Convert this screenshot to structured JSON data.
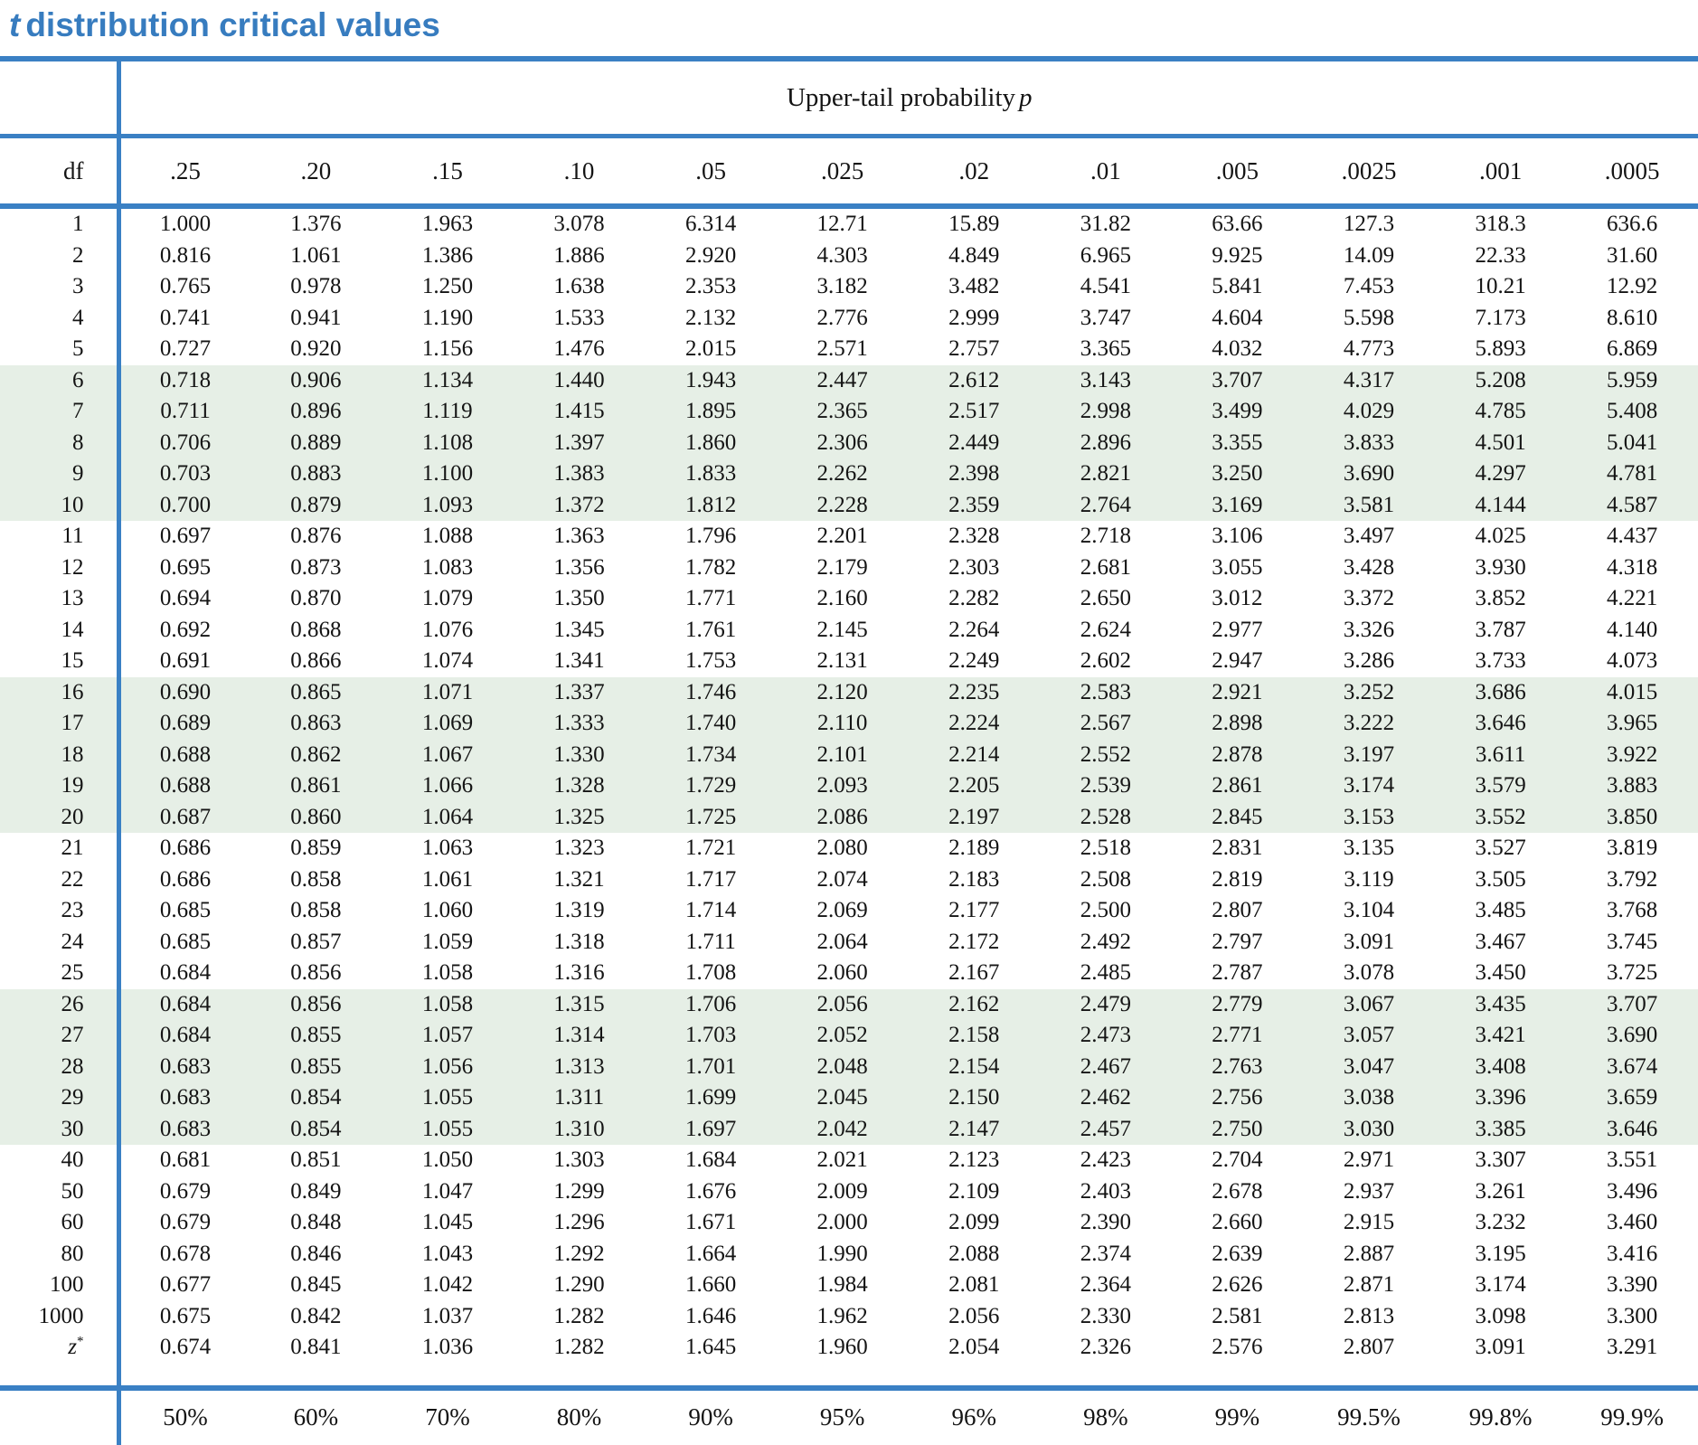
{
  "colors": {
    "title_blue": "#377CBF",
    "rule_blue": "#3A80C4",
    "band_green": "#E6EFE6",
    "text": "#141414"
  },
  "title": {
    "t": "t",
    "rest": "distribution critical values"
  },
  "table": {
    "upper_tail_label": "Upper-tail probability",
    "upper_tail_p": "p",
    "df_header": "df",
    "p_values": [
      ".25",
      ".20",
      ".15",
      ".10",
      ".05",
      ".025",
      ".02",
      ".01",
      ".005",
      ".0025",
      ".001",
      ".0005"
    ],
    "shaded_dfs": [
      "6",
      "7",
      "8",
      "9",
      "10",
      "16",
      "17",
      "18",
      "19",
      "20",
      "26",
      "27",
      "28",
      "29",
      "30"
    ],
    "rows": [
      {
        "df": "1",
        "v": [
          "1.000",
          "1.376",
          "1.963",
          "3.078",
          "6.314",
          "12.71",
          "15.89",
          "31.82",
          "63.66",
          "127.3",
          "318.3",
          "636.6"
        ]
      },
      {
        "df": "2",
        "v": [
          "0.816",
          "1.061",
          "1.386",
          "1.886",
          "2.920",
          "4.303",
          "4.849",
          "6.965",
          "9.925",
          "14.09",
          "22.33",
          "31.60"
        ]
      },
      {
        "df": "3",
        "v": [
          "0.765",
          "0.978",
          "1.250",
          "1.638",
          "2.353",
          "3.182",
          "3.482",
          "4.541",
          "5.841",
          "7.453",
          "10.21",
          "12.92"
        ]
      },
      {
        "df": "4",
        "v": [
          "0.741",
          "0.941",
          "1.190",
          "1.533",
          "2.132",
          "2.776",
          "2.999",
          "3.747",
          "4.604",
          "5.598",
          "7.173",
          "8.610"
        ]
      },
      {
        "df": "5",
        "v": [
          "0.727",
          "0.920",
          "1.156",
          "1.476",
          "2.015",
          "2.571",
          "2.757",
          "3.365",
          "4.032",
          "4.773",
          "5.893",
          "6.869"
        ]
      },
      {
        "df": "6",
        "v": [
          "0.718",
          "0.906",
          "1.134",
          "1.440",
          "1.943",
          "2.447",
          "2.612",
          "3.143",
          "3.707",
          "4.317",
          "5.208",
          "5.959"
        ]
      },
      {
        "df": "7",
        "v": [
          "0.711",
          "0.896",
          "1.119",
          "1.415",
          "1.895",
          "2.365",
          "2.517",
          "2.998",
          "3.499",
          "4.029",
          "4.785",
          "5.408"
        ]
      },
      {
        "df": "8",
        "v": [
          "0.706",
          "0.889",
          "1.108",
          "1.397",
          "1.860",
          "2.306",
          "2.449",
          "2.896",
          "3.355",
          "3.833",
          "4.501",
          "5.041"
        ]
      },
      {
        "df": "9",
        "v": [
          "0.703",
          "0.883",
          "1.100",
          "1.383",
          "1.833",
          "2.262",
          "2.398",
          "2.821",
          "3.250",
          "3.690",
          "4.297",
          "4.781"
        ]
      },
      {
        "df": "10",
        "v": [
          "0.700",
          "0.879",
          "1.093",
          "1.372",
          "1.812",
          "2.228",
          "2.359",
          "2.764",
          "3.169",
          "3.581",
          "4.144",
          "4.587"
        ]
      },
      {
        "df": "11",
        "v": [
          "0.697",
          "0.876",
          "1.088",
          "1.363",
          "1.796",
          "2.201",
          "2.328",
          "2.718",
          "3.106",
          "3.497",
          "4.025",
          "4.437"
        ]
      },
      {
        "df": "12",
        "v": [
          "0.695",
          "0.873",
          "1.083",
          "1.356",
          "1.782",
          "2.179",
          "2.303",
          "2.681",
          "3.055",
          "3.428",
          "3.930",
          "4.318"
        ]
      },
      {
        "df": "13",
        "v": [
          "0.694",
          "0.870",
          "1.079",
          "1.350",
          "1.771",
          "2.160",
          "2.282",
          "2.650",
          "3.012",
          "3.372",
          "3.852",
          "4.221"
        ]
      },
      {
        "df": "14",
        "v": [
          "0.692",
          "0.868",
          "1.076",
          "1.345",
          "1.761",
          "2.145",
          "2.264",
          "2.624",
          "2.977",
          "3.326",
          "3.787",
          "4.140"
        ]
      },
      {
        "df": "15",
        "v": [
          "0.691",
          "0.866",
          "1.074",
          "1.341",
          "1.753",
          "2.131",
          "2.249",
          "2.602",
          "2.947",
          "3.286",
          "3.733",
          "4.073"
        ]
      },
      {
        "df": "16",
        "v": [
          "0.690",
          "0.865",
          "1.071",
          "1.337",
          "1.746",
          "2.120",
          "2.235",
          "2.583",
          "2.921",
          "3.252",
          "3.686",
          "4.015"
        ]
      },
      {
        "df": "17",
        "v": [
          "0.689",
          "0.863",
          "1.069",
          "1.333",
          "1.740",
          "2.110",
          "2.224",
          "2.567",
          "2.898",
          "3.222",
          "3.646",
          "3.965"
        ]
      },
      {
        "df": "18",
        "v": [
          "0.688",
          "0.862",
          "1.067",
          "1.330",
          "1.734",
          "2.101",
          "2.214",
          "2.552",
          "2.878",
          "3.197",
          "3.611",
          "3.922"
        ]
      },
      {
        "df": "19",
        "v": [
          "0.688",
          "0.861",
          "1.066",
          "1.328",
          "1.729",
          "2.093",
          "2.205",
          "2.539",
          "2.861",
          "3.174",
          "3.579",
          "3.883"
        ]
      },
      {
        "df": "20",
        "v": [
          "0.687",
          "0.860",
          "1.064",
          "1.325",
          "1.725",
          "2.086",
          "2.197",
          "2.528",
          "2.845",
          "3.153",
          "3.552",
          "3.850"
        ]
      },
      {
        "df": "21",
        "v": [
          "0.686",
          "0.859",
          "1.063",
          "1.323",
          "1.721",
          "2.080",
          "2.189",
          "2.518",
          "2.831",
          "3.135",
          "3.527",
          "3.819"
        ]
      },
      {
        "df": "22",
        "v": [
          "0.686",
          "0.858",
          "1.061",
          "1.321",
          "1.717",
          "2.074",
          "2.183",
          "2.508",
          "2.819",
          "3.119",
          "3.505",
          "3.792"
        ]
      },
      {
        "df": "23",
        "v": [
          "0.685",
          "0.858",
          "1.060",
          "1.319",
          "1.714",
          "2.069",
          "2.177",
          "2.500",
          "2.807",
          "3.104",
          "3.485",
          "3.768"
        ]
      },
      {
        "df": "24",
        "v": [
          "0.685",
          "0.857",
          "1.059",
          "1.318",
          "1.711",
          "2.064",
          "2.172",
          "2.492",
          "2.797",
          "3.091",
          "3.467",
          "3.745"
        ]
      },
      {
        "df": "25",
        "v": [
          "0.684",
          "0.856",
          "1.058",
          "1.316",
          "1.708",
          "2.060",
          "2.167",
          "2.485",
          "2.787",
          "3.078",
          "3.450",
          "3.725"
        ]
      },
      {
        "df": "26",
        "v": [
          "0.684",
          "0.856",
          "1.058",
          "1.315",
          "1.706",
          "2.056",
          "2.162",
          "2.479",
          "2.779",
          "3.067",
          "3.435",
          "3.707"
        ]
      },
      {
        "df": "27",
        "v": [
          "0.684",
          "0.855",
          "1.057",
          "1.314",
          "1.703",
          "2.052",
          "2.158",
          "2.473",
          "2.771",
          "3.057",
          "3.421",
          "3.690"
        ]
      },
      {
        "df": "28",
        "v": [
          "0.683",
          "0.855",
          "1.056",
          "1.313",
          "1.701",
          "2.048",
          "2.154",
          "2.467",
          "2.763",
          "3.047",
          "3.408",
          "3.674"
        ]
      },
      {
        "df": "29",
        "v": [
          "0.683",
          "0.854",
          "1.055",
          "1.311",
          "1.699",
          "2.045",
          "2.150",
          "2.462",
          "2.756",
          "3.038",
          "3.396",
          "3.659"
        ]
      },
      {
        "df": "30",
        "v": [
          "0.683",
          "0.854",
          "1.055",
          "1.310",
          "1.697",
          "2.042",
          "2.147",
          "2.457",
          "2.750",
          "3.030",
          "3.385",
          "3.646"
        ]
      },
      {
        "df": "40",
        "v": [
          "0.681",
          "0.851",
          "1.050",
          "1.303",
          "1.684",
          "2.021",
          "2.123",
          "2.423",
          "2.704",
          "2.971",
          "3.307",
          "3.551"
        ]
      },
      {
        "df": "50",
        "v": [
          "0.679",
          "0.849",
          "1.047",
          "1.299",
          "1.676",
          "2.009",
          "2.109",
          "2.403",
          "2.678",
          "2.937",
          "3.261",
          "3.496"
        ]
      },
      {
        "df": "60",
        "v": [
          "0.679",
          "0.848",
          "1.045",
          "1.296",
          "1.671",
          "2.000",
          "2.099",
          "2.390",
          "2.660",
          "2.915",
          "3.232",
          "3.460"
        ]
      },
      {
        "df": "80",
        "v": [
          "0.678",
          "0.846",
          "1.043",
          "1.292",
          "1.664",
          "1.990",
          "2.088",
          "2.374",
          "2.639",
          "2.887",
          "3.195",
          "3.416"
        ]
      },
      {
        "df": "100",
        "v": [
          "0.677",
          "0.845",
          "1.042",
          "1.290",
          "1.660",
          "1.984",
          "2.081",
          "2.364",
          "2.626",
          "2.871",
          "3.174",
          "3.390"
        ]
      },
      {
        "df": "1000",
        "v": [
          "0.675",
          "0.842",
          "1.037",
          "1.282",
          "1.646",
          "1.962",
          "2.056",
          "2.330",
          "2.581",
          "2.813",
          "3.098",
          "3.300"
        ]
      },
      {
        "df": "z*",
        "v": [
          "0.674",
          "0.841",
          "1.036",
          "1.282",
          "1.645",
          "1.960",
          "2.054",
          "2.326",
          "2.576",
          "2.807",
          "3.091",
          "3.291"
        ]
      }
    ]
  },
  "footer": {
    "labels": [
      "50%",
      "60%",
      "70%",
      "80%",
      "90%",
      "95%",
      "96%",
      "98%",
      "99%",
      "99.5%",
      "99.8%",
      "99.9%"
    ]
  }
}
